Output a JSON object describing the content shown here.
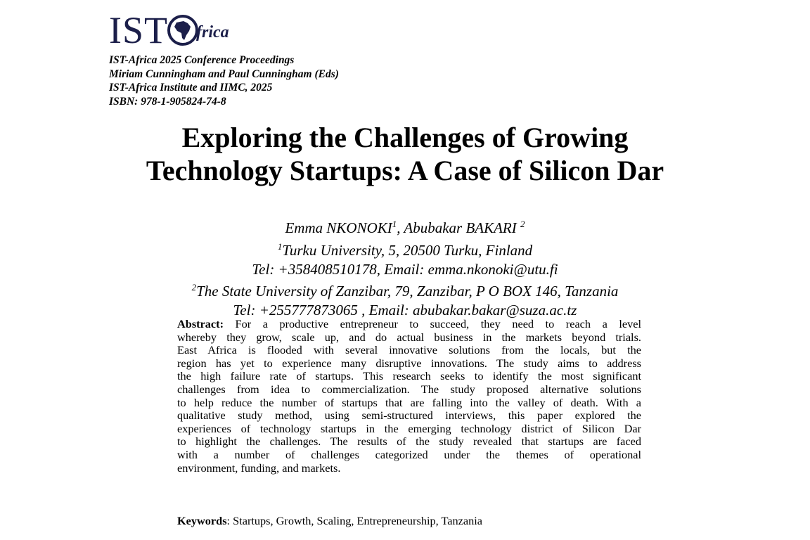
{
  "logo": {
    "text_ist": "IST",
    "text_frica": "frica",
    "color": "#1c1f4a"
  },
  "proceedings": [
    "IST-Africa 2025 Conference Proceedings",
    "Miriam Cunningham and Paul Cunningham (Eds)",
    "IST-Africa Institute and IIMC, 2025",
    "ISBN: 978-1-905824-74-8"
  ],
  "title": [
    "Exploring the Challenges of Growing",
    "Technology Startups: A Case of Silicon Dar"
  ],
  "authors": {
    "names": "Emma NKONOKI",
    "sup1": "1",
    "names2": ", Abubakar BAKARI ",
    "sup2": "2",
    "aff1_sup": "1",
    "aff1": "Turku University, 5, 20500 Turku, Finland",
    "contact1": "Tel: +358408510178, Email: emma.nkonoki@utu.fi",
    "aff2_sup": "2",
    "aff2": "The State University of Zanzibar, 79, Zanzibar, P O BOX 146, Tanzania",
    "contact2": "Tel: +255777873065 , Email: abubakar.bakar@suza.ac.tz"
  },
  "abstract": {
    "label": "Abstract:",
    "first_line": " For a productive entrepreneur to succeed, they need to reach a level",
    "lines": [
      "whereby they grow, scale up, and do actual business in the markets beyond trials.",
      "East Africa is flooded with several innovative solutions from the locals, but the",
      "region has yet to experience many disruptive innovations. The study aims to address",
      "the high failure rate of startups. This research seeks to identify the most significant",
      "challenges from idea to commercialization. The study proposed alternative solutions",
      "to help reduce the number of startups that are falling into the valley of death. With a",
      "qualitative study method, using semi-structured interviews, this paper explored the",
      "experiences of technology startups in the emerging technology district of Silicon Dar",
      "to highlight the challenges. The results of the study revealed that startups are faced",
      "with a number of challenges categorized under the themes of operational",
      "environment, funding, and markets."
    ]
  },
  "keywords": {
    "label": "Keywords",
    "text": ": Startups, Growth, Scaling, Entrepreneurship, Tanzania"
  }
}
